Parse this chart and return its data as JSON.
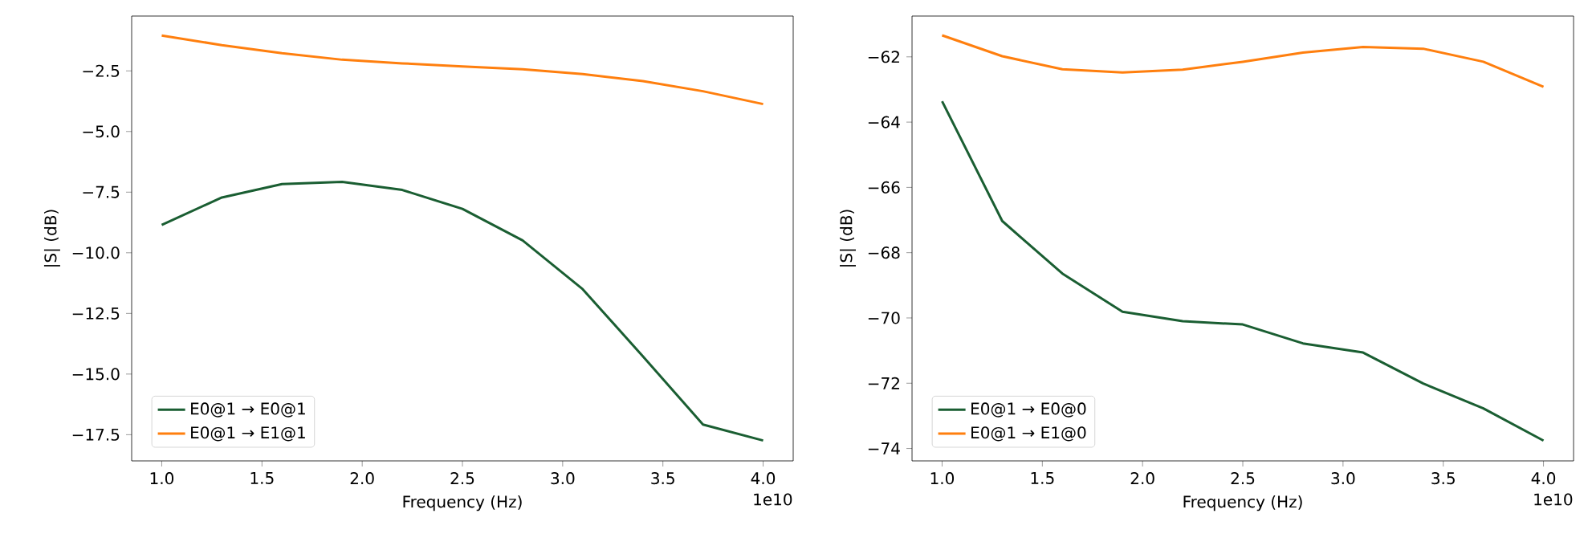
{
  "chart_data": [
    {
      "type": "line",
      "xlabel": "Frequency (Hz)",
      "ylabel": "|S| (dB)",
      "annotations": [
        "1e10"
      ],
      "x": [
        1.0,
        1.3,
        1.6,
        1.9,
        2.2,
        2.5,
        2.8,
        3.1,
        3.4,
        3.7,
        4.0
      ],
      "series": [
        {
          "name": "E0@1 → E0@1",
          "color": "#1a5e32",
          "values": [
            -8.85,
            -7.72,
            -7.17,
            -7.08,
            -7.41,
            -8.19,
            -9.49,
            -11.5,
            -14.27,
            -17.08,
            -17.74
          ]
        },
        {
          "name": "E0@1 → E1@1",
          "color": "#ff7f0e",
          "values": [
            -1.04,
            -1.44,
            -1.77,
            -2.04,
            -2.19,
            -2.32,
            -2.43,
            -2.63,
            -2.92,
            -3.34,
            -3.87
          ]
        }
      ],
      "xlim": [
        0.85,
        4.15
      ],
      "ylim": [
        -18.58,
        -0.24
      ],
      "xticks": [
        {
          "value": 1.0,
          "label": "1.0"
        },
        {
          "value": 1.5,
          "label": "1.5"
        },
        {
          "value": 2.0,
          "label": "2.0"
        },
        {
          "value": 2.5,
          "label": "2.5"
        },
        {
          "value": 3.0,
          "label": "3.0"
        },
        {
          "value": 3.5,
          "label": "3.5"
        },
        {
          "value": 4.0,
          "label": "4.0"
        }
      ],
      "yticks": [
        {
          "value": -17.5,
          "label": "−17.5"
        },
        {
          "value": -15.0,
          "label": "−15.0"
        },
        {
          "value": -12.5,
          "label": "−12.5"
        },
        {
          "value": -10.0,
          "label": "−10.0"
        },
        {
          "value": -7.5,
          "label": "−7.5"
        },
        {
          "value": -5.0,
          "label": "−5.0"
        },
        {
          "value": -2.5,
          "label": "−2.5"
        }
      ],
      "legend": "bottom left"
    },
    {
      "type": "line",
      "xlabel": "Frequency (Hz)",
      "ylabel": "|S| (dB)",
      "annotations": [
        "1e10"
      ],
      "x": [
        1.0,
        1.3,
        1.6,
        1.9,
        2.2,
        2.5,
        2.8,
        3.1,
        3.4,
        3.7,
        4.0
      ],
      "series": [
        {
          "name": "E0@1 → E0@0",
          "color": "#1a5e32",
          "values": [
            -63.36,
            -67.03,
            -68.64,
            -69.81,
            -70.1,
            -70.2,
            -70.78,
            -71.06,
            -72.01,
            -72.77,
            -73.76
          ]
        },
        {
          "name": "E0@1 → E1@0",
          "color": "#ff7f0e",
          "values": [
            -61.34,
            -61.98,
            -62.38,
            -62.48,
            -62.39,
            -62.15,
            -61.87,
            -61.7,
            -61.75,
            -62.15,
            -62.92
          ]
        }
      ],
      "xlim": [
        0.85,
        4.15
      ],
      "ylim": [
        -74.38,
        -60.75
      ],
      "xticks": [
        {
          "value": 1.0,
          "label": "1.0"
        },
        {
          "value": 1.5,
          "label": "1.5"
        },
        {
          "value": 2.0,
          "label": "2.0"
        },
        {
          "value": 2.5,
          "label": "2.5"
        },
        {
          "value": 3.0,
          "label": "3.0"
        },
        {
          "value": 3.5,
          "label": "3.5"
        },
        {
          "value": 4.0,
          "label": "4.0"
        }
      ],
      "yticks": [
        {
          "value": -74,
          "label": "−74"
        },
        {
          "value": -72,
          "label": "−72"
        },
        {
          "value": -70,
          "label": "−70"
        },
        {
          "value": -68,
          "label": "−68"
        },
        {
          "value": -66,
          "label": "−66"
        },
        {
          "value": -64,
          "label": "−64"
        },
        {
          "value": -62,
          "label": "−62"
        }
      ],
      "legend": "bottom left"
    }
  ]
}
